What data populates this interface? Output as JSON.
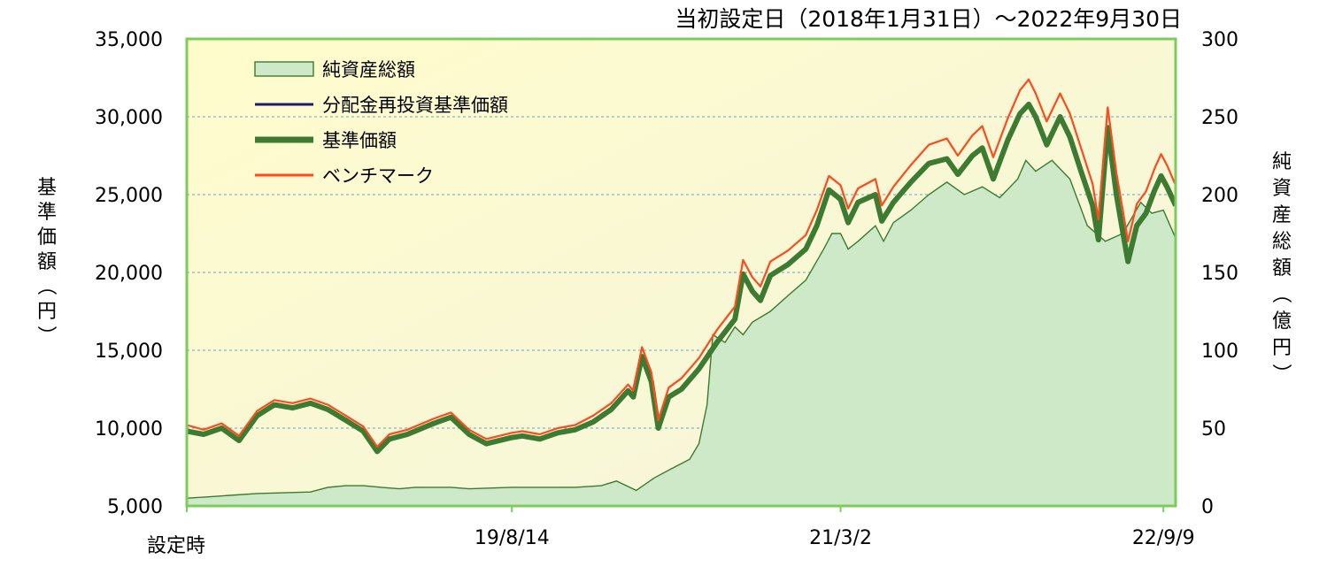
{
  "chart_data": {
    "type": "line",
    "title": "当初設定日（2018年1月31日）～2022年9月30日",
    "y_left_label": "基準価額（円）",
    "y_right_label": "純資産総額（億円）",
    "y_left_lim": [
      5000,
      35000
    ],
    "y_right_lim": [
      0,
      300
    ],
    "y_left_ticks": [
      "5,000",
      "10,000",
      "15,000",
      "20,000",
      "25,000",
      "30,000",
      "35,000"
    ],
    "y_right_ticks": [
      "0",
      "50",
      "100",
      "150",
      "200",
      "250",
      "300"
    ],
    "x_tick_labels": [
      "設定時",
      "19/8/14",
      "21/3/2",
      "22/9/9"
    ],
    "x_tick_dates": [
      "2018-01-31",
      "2019-08-14",
      "2021-03-02",
      "2022-09-09"
    ],
    "x_range": [
      "2018-01-31",
      "2022-09-30"
    ],
    "grid": "horizontal dashed",
    "legend_position": "top-left",
    "colors": {
      "plot_bg_start": "#fffccc",
      "plot_bg_end": "#f4f4dc",
      "frame": "#7ccc5c",
      "grid": "#5fa8c8",
      "net_assets_fill": "#cde9c8",
      "net_assets_line": "#3d7a32",
      "reinvest_line": "#1a1a6e",
      "nav_line": "#3d7a32",
      "benchmark_line": "#ff4a1c"
    },
    "series": [
      {
        "name": "純資産総額",
        "kind": "area",
        "axis": "right",
        "points": [
          [
            "2018-01-31",
            5
          ],
          [
            "2018-03-15",
            6
          ],
          [
            "2018-06-01",
            8
          ],
          [
            "2018-09-01",
            9
          ],
          [
            "2018-10-01",
            12
          ],
          [
            "2018-11-01",
            13
          ],
          [
            "2018-12-01",
            13
          ],
          [
            "2019-01-01",
            12
          ],
          [
            "2019-02-01",
            11
          ],
          [
            "2019-03-01",
            12
          ],
          [
            "2019-05-01",
            12
          ],
          [
            "2019-06-01",
            11
          ],
          [
            "2019-08-14",
            12
          ],
          [
            "2019-10-01",
            12
          ],
          [
            "2019-12-01",
            12
          ],
          [
            "2020-01-15",
            13
          ],
          [
            "2020-02-10",
            16
          ],
          [
            "2020-03-15",
            10
          ],
          [
            "2020-04-15",
            18
          ],
          [
            "2020-05-15",
            24
          ],
          [
            "2020-06-15",
            30
          ],
          [
            "2020-07-01",
            40
          ],
          [
            "2020-07-15",
            65
          ],
          [
            "2020-07-25",
            110
          ],
          [
            "2020-08-15",
            105
          ],
          [
            "2020-09-01",
            115
          ],
          [
            "2020-09-15",
            110
          ],
          [
            "2020-10-01",
            118
          ],
          [
            "2020-11-01",
            125
          ],
          [
            "2020-12-01",
            135
          ],
          [
            "2021-01-01",
            145
          ],
          [
            "2021-02-01",
            165
          ],
          [
            "2021-02-15",
            175
          ],
          [
            "2021-03-02",
            175
          ],
          [
            "2021-03-15",
            165
          ],
          [
            "2021-04-01",
            170
          ],
          [
            "2021-05-01",
            180
          ],
          [
            "2021-05-15",
            170
          ],
          [
            "2021-06-01",
            182
          ],
          [
            "2021-07-01",
            190
          ],
          [
            "2021-08-01",
            200
          ],
          [
            "2021-09-01",
            208
          ],
          [
            "2021-10-01",
            200
          ],
          [
            "2021-11-01",
            205
          ],
          [
            "2021-12-01",
            198
          ],
          [
            "2022-01-01",
            210
          ],
          [
            "2022-01-15",
            222
          ],
          [
            "2022-02-01",
            215
          ],
          [
            "2022-03-01",
            222
          ],
          [
            "2022-04-01",
            210
          ],
          [
            "2022-05-01",
            180
          ],
          [
            "2022-06-01",
            170
          ],
          [
            "2022-07-01",
            175
          ],
          [
            "2022-08-01",
            195
          ],
          [
            "2022-08-20",
            188
          ],
          [
            "2022-09-09",
            190
          ],
          [
            "2022-09-30",
            172
          ]
        ]
      },
      {
        "name": "分配金再投資基準価額",
        "kind": "line",
        "axis": "left",
        "note": "Overlaps 基準価額 (no distributions paid)"
      },
      {
        "name": "基準価額",
        "kind": "line",
        "axis": "left",
        "points": [
          [
            "2018-01-31",
            9800
          ],
          [
            "2018-03-01",
            9600
          ],
          [
            "2018-04-01",
            10000
          ],
          [
            "2018-05-01",
            9200
          ],
          [
            "2018-06-01",
            10800
          ],
          [
            "2018-07-01",
            11500
          ],
          [
            "2018-08-01",
            11300
          ],
          [
            "2018-09-01",
            11600
          ],
          [
            "2018-10-01",
            11200
          ],
          [
            "2018-11-01",
            10500
          ],
          [
            "2018-12-01",
            9800
          ],
          [
            "2018-12-25",
            8500
          ],
          [
            "2019-01-15",
            9300
          ],
          [
            "2019-02-15",
            9600
          ],
          [
            "2019-04-01",
            10300
          ],
          [
            "2019-05-01",
            10700
          ],
          [
            "2019-06-01",
            9600
          ],
          [
            "2019-07-01",
            9000
          ],
          [
            "2019-08-14",
            9400
          ],
          [
            "2019-09-01",
            9500
          ],
          [
            "2019-10-01",
            9300
          ],
          [
            "2019-11-01",
            9700
          ],
          [
            "2019-12-01",
            9900
          ],
          [
            "2020-01-01",
            10400
          ],
          [
            "2020-02-01",
            11200
          ],
          [
            "2020-03-01",
            12400
          ],
          [
            "2020-03-10",
            12000
          ],
          [
            "2020-03-25",
            14600
          ],
          [
            "2020-04-10",
            13000
          ],
          [
            "2020-04-22",
            10000
          ],
          [
            "2020-05-10",
            12000
          ],
          [
            "2020-06-01",
            12500
          ],
          [
            "2020-07-01",
            13800
          ],
          [
            "2020-08-01",
            15500
          ],
          [
            "2020-09-01",
            17000
          ],
          [
            "2020-09-15",
            19900
          ],
          [
            "2020-10-01",
            18800
          ],
          [
            "2020-10-15",
            18200
          ],
          [
            "2020-11-01",
            19800
          ],
          [
            "2020-12-01",
            20500
          ],
          [
            "2021-01-01",
            21500
          ],
          [
            "2021-01-20",
            23000
          ],
          [
            "2021-02-10",
            25300
          ],
          [
            "2021-03-02",
            24700
          ],
          [
            "2021-03-15",
            23200
          ],
          [
            "2021-04-01",
            24500
          ],
          [
            "2021-05-01",
            25000
          ],
          [
            "2021-05-12",
            23300
          ],
          [
            "2021-06-01",
            24500
          ],
          [
            "2021-07-01",
            25800
          ],
          [
            "2021-08-01",
            27000
          ],
          [
            "2021-09-01",
            27300
          ],
          [
            "2021-09-20",
            26300
          ],
          [
            "2021-10-15",
            27500
          ],
          [
            "2021-11-01",
            28000
          ],
          [
            "2021-11-20",
            26000
          ],
          [
            "2021-12-15",
            28500
          ],
          [
            "2022-01-05",
            30200
          ],
          [
            "2022-01-20",
            30800
          ],
          [
            "2022-02-01",
            30000
          ],
          [
            "2022-02-20",
            28200
          ],
          [
            "2022-03-15",
            30000
          ],
          [
            "2022-04-01",
            28700
          ],
          [
            "2022-04-20",
            26500
          ],
          [
            "2022-05-10",
            24300
          ],
          [
            "2022-05-20",
            22100
          ],
          [
            "2022-06-05",
            29300
          ],
          [
            "2022-06-20",
            25000
          ],
          [
            "2022-07-01",
            22600
          ],
          [
            "2022-07-10",
            20700
          ],
          [
            "2022-07-25",
            23000
          ],
          [
            "2022-08-10",
            23800
          ],
          [
            "2022-08-25",
            25300
          ],
          [
            "2022-09-05",
            26200
          ],
          [
            "2022-09-15",
            25500
          ],
          [
            "2022-09-30",
            24300
          ]
        ]
      },
      {
        "name": "ベンチマーク",
        "kind": "line",
        "axis": "left",
        "points": [
          [
            "2018-01-31",
            10200
          ],
          [
            "2018-03-01",
            9900
          ],
          [
            "2018-04-01",
            10300
          ],
          [
            "2018-05-01",
            9500
          ],
          [
            "2018-06-01",
            11100
          ],
          [
            "2018-07-01",
            11800
          ],
          [
            "2018-08-01",
            11600
          ],
          [
            "2018-09-01",
            11900
          ],
          [
            "2018-10-01",
            11500
          ],
          [
            "2018-11-01",
            10800
          ],
          [
            "2018-12-01",
            10100
          ],
          [
            "2018-12-25",
            8800
          ],
          [
            "2019-01-15",
            9600
          ],
          [
            "2019-02-15",
            9900
          ],
          [
            "2019-04-01",
            10600
          ],
          [
            "2019-05-01",
            11000
          ],
          [
            "2019-06-01",
            9900
          ],
          [
            "2019-07-01",
            9300
          ],
          [
            "2019-08-14",
            9700
          ],
          [
            "2019-09-01",
            9800
          ],
          [
            "2019-10-01",
            9600
          ],
          [
            "2019-11-01",
            10000
          ],
          [
            "2019-12-01",
            10200
          ],
          [
            "2020-01-01",
            10800
          ],
          [
            "2020-02-01",
            11600
          ],
          [
            "2020-03-01",
            12800
          ],
          [
            "2020-03-10",
            12400
          ],
          [
            "2020-03-25",
            15200
          ],
          [
            "2020-04-10",
            13600
          ],
          [
            "2020-04-22",
            10500
          ],
          [
            "2020-05-10",
            12600
          ],
          [
            "2020-06-01",
            13200
          ],
          [
            "2020-07-01",
            14500
          ],
          [
            "2020-08-01",
            16300
          ],
          [
            "2020-09-01",
            17800
          ],
          [
            "2020-09-15",
            20800
          ],
          [
            "2020-10-01",
            19700
          ],
          [
            "2020-10-15",
            19100
          ],
          [
            "2020-11-01",
            20700
          ],
          [
            "2020-12-01",
            21400
          ],
          [
            "2021-01-01",
            22400
          ],
          [
            "2021-01-20",
            24000
          ],
          [
            "2021-02-10",
            26200
          ],
          [
            "2021-03-02",
            25600
          ],
          [
            "2021-03-15",
            24100
          ],
          [
            "2021-04-01",
            25400
          ],
          [
            "2021-05-01",
            26000
          ],
          [
            "2021-05-12",
            24300
          ],
          [
            "2021-06-01",
            25500
          ],
          [
            "2021-07-01",
            26900
          ],
          [
            "2021-08-01",
            28200
          ],
          [
            "2021-09-01",
            28600
          ],
          [
            "2021-09-20",
            27500
          ],
          [
            "2021-10-15",
            28800
          ],
          [
            "2021-11-01",
            29400
          ],
          [
            "2021-11-20",
            27400
          ],
          [
            "2021-12-15",
            29900
          ],
          [
            "2022-01-05",
            31700
          ],
          [
            "2022-01-20",
            32400
          ],
          [
            "2022-02-01",
            31500
          ],
          [
            "2022-02-20",
            29700
          ],
          [
            "2022-03-15",
            31500
          ],
          [
            "2022-04-01",
            30200
          ],
          [
            "2022-04-20",
            28000
          ],
          [
            "2022-05-10",
            25700
          ],
          [
            "2022-05-20",
            23400
          ],
          [
            "2022-06-05",
            30600
          ],
          [
            "2022-06-20",
            26400
          ],
          [
            "2022-07-01",
            24000
          ],
          [
            "2022-07-10",
            22000
          ],
          [
            "2022-07-25",
            24400
          ],
          [
            "2022-08-10",
            25200
          ],
          [
            "2022-08-25",
            26700
          ],
          [
            "2022-09-05",
            27600
          ],
          [
            "2022-09-15",
            26900
          ],
          [
            "2022-09-30",
            25600
          ]
        ]
      }
    ]
  }
}
